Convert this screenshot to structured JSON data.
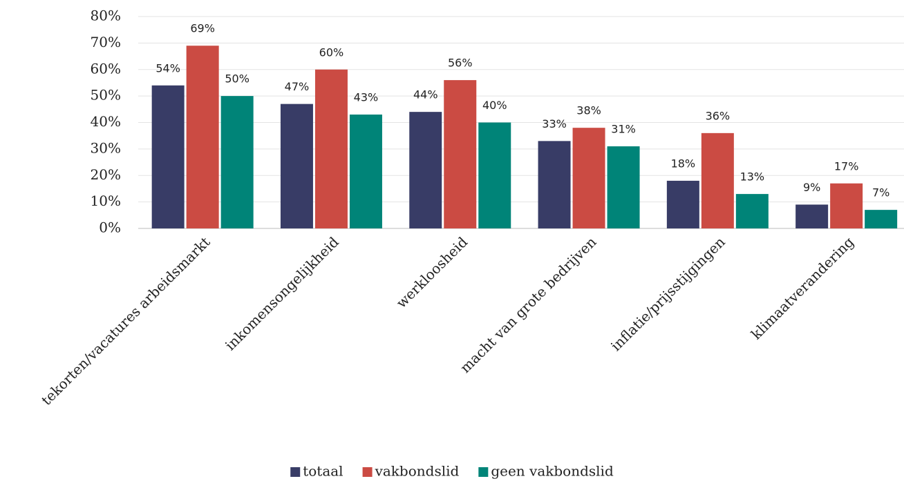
{
  "chart_data": {
    "type": "bar",
    "categories": [
      "tekorten/vacatures arbeidsmarkt",
      "inkomensongelijkheid",
      "werkloosheid",
      "macht van grote bedrijven",
      "inflatie/prijsstijgingen",
      "klimaatverandering"
    ],
    "series": [
      {
        "name": "totaal",
        "color": "#383c66",
        "values": [
          54,
          47,
          44,
          33,
          18,
          9
        ],
        "value_labels": [
          "54%",
          "47%",
          "44%",
          "33%",
          "18%",
          "9%"
        ]
      },
      {
        "name": "vakbondslid",
        "color": "#cb4b43",
        "values": [
          69,
          60,
          56,
          38,
          36,
          17
        ],
        "value_labels": [
          "69%",
          "60%",
          "56%",
          "38%",
          "36%",
          "17%"
        ]
      },
      {
        "name": "geen vakbondslid",
        "color": "#008478",
        "values": [
          50,
          43,
          40,
          31,
          13,
          7
        ],
        "value_labels": [
          "50%",
          "43%",
          "40%",
          "31%",
          "13%",
          "7%"
        ]
      }
    ],
    "ylim": [
      0,
      80
    ],
    "yticks": [
      {
        "value": 0,
        "label": "0%"
      },
      {
        "value": 10,
        "label": "10%"
      },
      {
        "value": 20,
        "label": "20%"
      },
      {
        "value": 30,
        "label": "30%"
      },
      {
        "value": 40,
        "label": "40%"
      },
      {
        "value": 50,
        "label": "50%"
      },
      {
        "value": 60,
        "label": "60%"
      },
      {
        "value": 70,
        "label": "70%"
      },
      {
        "value": 80,
        "label": "80%"
      }
    ],
    "grid": true,
    "legend": "bottom"
  }
}
